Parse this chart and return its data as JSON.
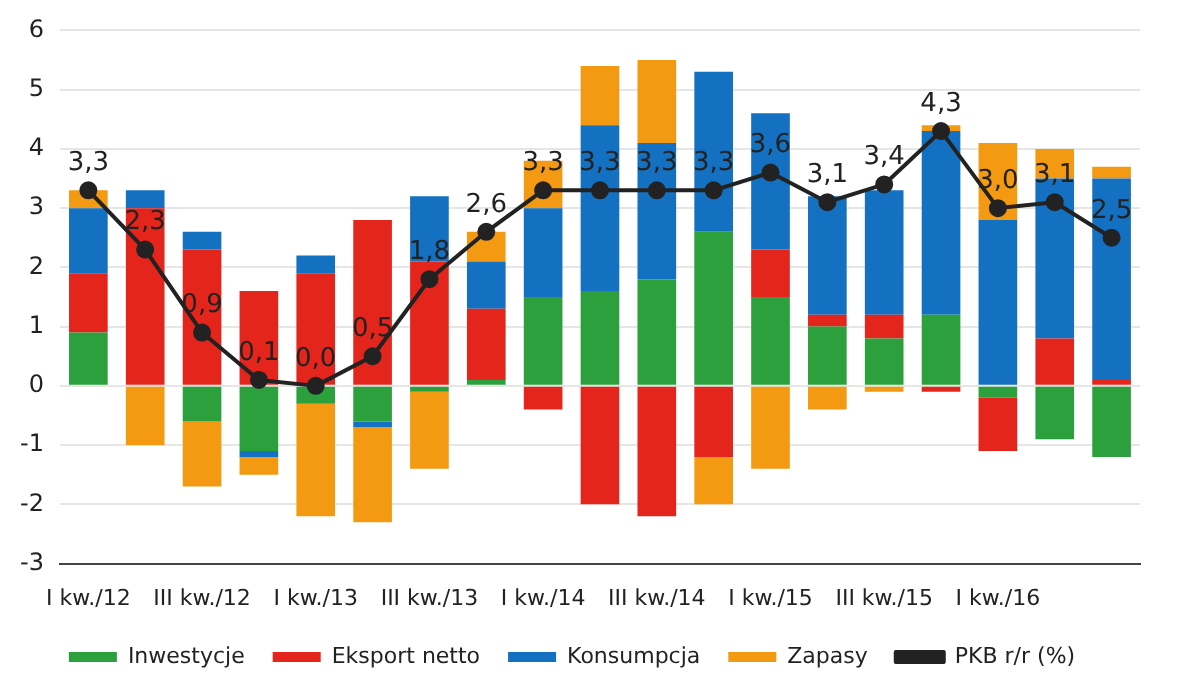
{
  "chart_data": {
    "type": "bar",
    "stacked": true,
    "categories": [
      "I kw./12",
      null,
      "III kw./12",
      null,
      "I kw./13",
      null,
      "III kw./13",
      null,
      "I kw./14",
      null,
      "III kw./14",
      null,
      "I kw./15",
      null,
      "III kw./15",
      null,
      "I kw./16",
      null,
      null
    ],
    "series": [
      {
        "name": "Inwestycje",
        "color": "#2ca03c",
        "values": [
          0.9,
          0,
          -0.6,
          -1.1,
          -0.3,
          -0.6,
          -0.1,
          0.1,
          1.5,
          1.6,
          1.8,
          2.6,
          1.5,
          1.0,
          0.8,
          1.2,
          -0.2,
          -0.9,
          -1.2
        ]
      },
      {
        "name": "Eksport netto",
        "color": "#e3251c",
        "values": [
          1.0,
          3.0,
          2.3,
          1.6,
          1.9,
          2.8,
          2.1,
          1.2,
          -0.4,
          -2.0,
          -2.2,
          -1.2,
          0.8,
          0.2,
          0.4,
          -0.1,
          -0.9,
          0.8,
          0.1
        ]
      },
      {
        "name": "Konsumpcja",
        "color": "#1470c0",
        "values": [
          1.1,
          0.3,
          0.3,
          -0.1,
          0.3,
          -0.1,
          1.1,
          0.8,
          1.5,
          2.8,
          2.3,
          2.7,
          2.3,
          2.0,
          2.1,
          3.1,
          2.8,
          2.7,
          3.4
        ]
      },
      {
        "name": "Zapasy",
        "color": "#f39a12",
        "values": [
          0.3,
          -1.0,
          -1.1,
          -0.3,
          -1.9,
          -1.6,
          -1.3,
          0.5,
          0.8,
          1.0,
          1.4,
          -0.8,
          -1.4,
          -0.4,
          -0.1,
          0.1,
          1.3,
          0.5,
          0.2
        ]
      },
      {
        "name": "PKB r/r (%)",
        "type": "line",
        "color": "#222222",
        "marker": "circle",
        "values": [
          3.3,
          2.3,
          0.9,
          0.1,
          0.0,
          0.5,
          1.8,
          2.6,
          3.3,
          3.3,
          3.3,
          3.3,
          3.6,
          3.1,
          3.4,
          4.3,
          3.0,
          3.1,
          2.5
        ],
        "value_labels": [
          "3,3",
          "2,3",
          "0,9",
          "0,1",
          "0,0",
          "0,5",
          "1,8",
          "2,6",
          "3,3",
          "3,3",
          "3,3",
          "3,3",
          "3,6",
          "3,1",
          "3,4",
          "4,3",
          "3,0",
          "3,1",
          "2,5"
        ]
      }
    ],
    "ylim": [
      -3,
      6
    ],
    "yticks": [
      -3,
      -2,
      -1,
      0,
      1,
      2,
      3,
      4,
      5,
      6
    ],
    "grid": "y",
    "legend": "bottom"
  }
}
